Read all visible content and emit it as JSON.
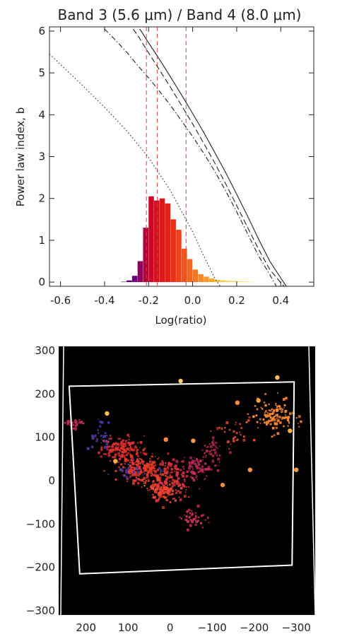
{
  "chart_data": [
    {
      "type": "bar",
      "title": "Band 3 (5.6 μm) / Band 4 (8.0 μm)",
      "xlabel": "Log(ratio)",
      "ylabel": "Power law index, b",
      "xlim": [
        -0.65,
        0.55
      ],
      "ylim": [
        -0.1,
        6.1
      ],
      "xticks": [
        "-0.6",
        "-0.4",
        "-0.2",
        "0.0",
        "0.2",
        "0.4"
      ],
      "yticks": [
        "0",
        "1",
        "2",
        "3",
        "4",
        "5",
        "6"
      ],
      "grid": false,
      "histogram": {
        "bin_width": 0.025,
        "bins": [
          [
            -0.325,
            0.01
          ],
          [
            -0.3,
            0.04
          ],
          [
            -0.275,
            0.15
          ],
          [
            -0.25,
            0.5
          ],
          [
            -0.225,
            1.3
          ],
          [
            -0.2,
            2.05
          ],
          [
            -0.175,
            1.95
          ],
          [
            -0.15,
            2.0
          ],
          [
            -0.125,
            1.88
          ],
          [
            -0.1,
            1.5
          ],
          [
            -0.075,
            1.25
          ],
          [
            -0.05,
            0.8
          ],
          [
            -0.025,
            0.55
          ],
          [
            0.0,
            0.3
          ],
          [
            0.025,
            0.19
          ],
          [
            0.05,
            0.13
          ],
          [
            0.075,
            0.09
          ],
          [
            0.1,
            0.05
          ],
          [
            0.125,
            0.04
          ],
          [
            0.15,
            0.03
          ],
          [
            0.175,
            0.025
          ],
          [
            0.2,
            0.02
          ],
          [
            0.225,
            0.015
          ],
          [
            0.25,
            0.01
          ],
          [
            0.275,
            0.005
          ]
        ]
      },
      "reference_lines_x": [
        -0.21,
        -0.16,
        -0.03
      ],
      "reference_line_color": "#d04545",
      "curves": [
        {
          "style": "solid",
          "x": [
            -0.24,
            -0.2,
            -0.15,
            -0.1,
            -0.05,
            0.0,
            0.05,
            0.1,
            0.15,
            0.2,
            0.25,
            0.3,
            0.35,
            0.4,
            0.425
          ],
          "y": [
            6.05,
            5.72,
            5.32,
            4.9,
            4.47,
            4.03,
            3.58,
            3.1,
            2.62,
            2.1,
            1.57,
            1.02,
            0.5,
            0.1,
            -0.1
          ]
        },
        {
          "style": "dashed",
          "x": [
            -0.27,
            -0.25,
            -0.2,
            -0.15,
            -0.1,
            -0.05,
            0.0,
            0.05,
            0.1,
            0.15,
            0.2,
            0.25,
            0.3,
            0.35,
            0.39,
            0.415
          ],
          "y": [
            6.05,
            5.9,
            5.48,
            5.07,
            4.65,
            4.22,
            3.78,
            3.32,
            2.85,
            2.35,
            1.83,
            1.3,
            0.78,
            0.3,
            0.05,
            -0.1
          ]
        },
        {
          "style": "dashdot",
          "x": [
            -0.4,
            -0.35,
            -0.3,
            -0.25,
            -0.2,
            -0.15,
            -0.1,
            -0.05,
            0.0,
            0.05,
            0.1,
            0.15,
            0.2,
            0.25,
            0.3,
            0.35,
            0.38
          ],
          "y": [
            6.05,
            5.78,
            5.5,
            5.18,
            4.88,
            4.56,
            4.22,
            3.85,
            3.48,
            3.08,
            2.65,
            2.18,
            1.68,
            1.15,
            0.62,
            0.18,
            -0.1
          ]
        },
        {
          "style": "dotted",
          "x": [
            -0.65,
            -0.6,
            -0.5,
            -0.4,
            -0.3,
            -0.2,
            -0.1,
            0.0,
            0.05,
            0.1,
            0.125
          ],
          "y": [
            5.45,
            5.2,
            4.7,
            4.18,
            3.62,
            2.98,
            2.18,
            1.2,
            0.63,
            0.1,
            -0.1
          ]
        }
      ]
    },
    {
      "type": "scatter",
      "xlim": [
        265,
        -345
      ],
      "ylim": [
        -310,
        310
      ],
      "xticks": [
        "200",
        "100",
        "0",
        "−100",
        "−200",
        "−300"
      ],
      "yticks": [
        "300",
        "200",
        "100",
        "0",
        "−100",
        "−200",
        "−300"
      ],
      "background_color": "#000000",
      "footprint_outline": [
        [
          240,
          218
        ],
        [
          -295,
          228
        ],
        [
          -290,
          -195
        ],
        [
          215,
          -215
        ]
      ],
      "outline_color": "#ffffff",
      "clusters": [
        {
          "x": 230,
          "y": 135,
          "rx": 18,
          "ry": 10,
          "n": 40,
          "color": "#c02a55"
        },
        {
          "x": 120,
          "y": 75,
          "rx": 45,
          "ry": 22,
          "n": 160,
          "color": "#e03030"
        },
        {
          "x": 60,
          "y": 30,
          "rx": 50,
          "ry": 25,
          "n": 190,
          "color": "#e83a2a"
        },
        {
          "x": 20,
          "y": -15,
          "rx": 35,
          "ry": 25,
          "n": 140,
          "color": "#f04a30"
        },
        {
          "x": -10,
          "y": 10,
          "rx": 35,
          "ry": 40,
          "n": 110,
          "color": "#d83040"
        },
        {
          "x": -60,
          "y": 30,
          "rx": 30,
          "ry": 25,
          "n": 70,
          "color": "#c02860"
        },
        {
          "x": -95,
          "y": 65,
          "rx": 20,
          "ry": 28,
          "n": 45,
          "color": "#b82850"
        },
        {
          "x": -55,
          "y": -85,
          "rx": 25,
          "ry": 18,
          "n": 45,
          "color": "#d0305a"
        },
        {
          "x": -245,
          "y": 150,
          "rx": 40,
          "ry": 30,
          "n": 120,
          "color": "#ff8a30"
        },
        {
          "x": -150,
          "y": 115,
          "rx": 35,
          "ry": 25,
          "n": 35,
          "color": "#e84a2a"
        },
        {
          "x": 170,
          "y": 110,
          "rx": 25,
          "ry": 30,
          "n": 25,
          "color": "#4a3aa8"
        },
        {
          "x": 80,
          "y": 20,
          "rx": 40,
          "ry": 25,
          "n": 30,
          "color": "#5a38a0"
        }
      ],
      "bright_sources": [
        {
          "x": 150,
          "y": 155,
          "color": "#ffc040"
        },
        {
          "x": -285,
          "y": 115,
          "color": "#ffb040"
        },
        {
          "x": -25,
          "y": 230,
          "color": "#ffd060"
        },
        {
          "x": -255,
          "y": 238,
          "color": "#ffc050"
        },
        {
          "x": -55,
          "y": 92,
          "color": "#ff9a40"
        },
        {
          "x": -190,
          "y": 25,
          "color": "#ff9040"
        },
        {
          "x": -300,
          "y": 25,
          "color": "#ff9a40"
        },
        {
          "x": -160,
          "y": 180,
          "color": "#ff8a30"
        },
        {
          "x": 10,
          "y": 95,
          "color": "#ff8a40"
        },
        {
          "x": -125,
          "y": -10,
          "color": "#f08a40"
        },
        {
          "x": 130,
          "y": 45,
          "color": "#ffb040"
        },
        {
          "x": -210,
          "y": 185,
          "color": "#ffa040"
        }
      ]
    }
  ]
}
